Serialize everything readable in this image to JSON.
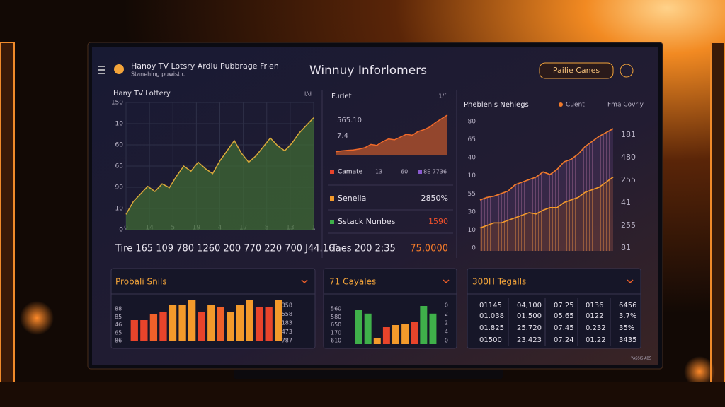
{
  "header": {
    "title": "Hanoy TV Lotsry Ardiu Pubbrage Frien",
    "subtitle": "Stanehing puwistic",
    "center_title": "Winnuy Inforlomers",
    "button": "Pailie Canes"
  },
  "panels": {
    "trend": {
      "title": "Hany TV Lottery",
      "corner": "l/d",
      "ylabels": [
        "150",
        "10",
        "60",
        "65",
        "90",
        "10",
        "0"
      ],
      "xlabels": [
        "0",
        "14",
        "5",
        "19",
        "4",
        "17",
        "8",
        "13",
        "1"
      ],
      "ylim": [
        0,
        100
      ],
      "line_color": "#d9a93a",
      "fill_color": "#3f6a34",
      "values": [
        12,
        22,
        28,
        34,
        30,
        36,
        33,
        42,
        50,
        46,
        53,
        48,
        44,
        54,
        62,
        70,
        60,
        53,
        58,
        65,
        72,
        66,
        62,
        68,
        76,
        82,
        88
      ],
      "footer": "Tire 165 109 780 1260 200 770 220 700 J44.16"
    },
    "furlet": {
      "title": "Furlet",
      "corner": "1/f",
      "labels": [
        "565.10",
        "7.4"
      ],
      "ylim": [
        0,
        100
      ],
      "color": "#f26a2a",
      "values": [
        8,
        10,
        11,
        12,
        14,
        17,
        24,
        22,
        30,
        36,
        34,
        40,
        46,
        44,
        52,
        56,
        62,
        72,
        80,
        88
      ],
      "legend": [
        {
          "name": "Camate",
          "color": "#e8442b",
          "texts": [
            "13",
            "60",
            "8E 7736"
          ],
          "color2": "#8a5ad0"
        },
        {
          "name": "Senelia",
          "color": "#f39a2b",
          "texts": [
            "2850%"
          ]
        },
        {
          "name": "Sstack Nunbes",
          "color": "#3fb04a",
          "texts": [
            "1590"
          ],
          "text_color": "#f0502a"
        }
      ],
      "footer": "Taes 200 2:35",
      "footer_value": "75,0000"
    },
    "problems": {
      "title": "Pheblenls Nehlegs",
      "ylabels": [
        "80",
        "65",
        "40",
        "10",
        "55",
        "30",
        "10",
        "0"
      ],
      "y2labels": [
        "181",
        "480",
        "255",
        "41",
        "255",
        "81"
      ],
      "ylim": [
        0,
        100
      ],
      "series": [
        {
          "name": "Cuent",
          "color": "#f07a2a",
          "fill": "#5b3f72",
          "values": [
            40,
            42,
            43,
            45,
            47,
            52,
            54,
            56,
            58,
            62,
            60,
            64,
            70,
            72,
            76,
            82,
            86,
            90,
            93,
            96
          ]
        },
        {
          "name": "Fma Covrly",
          "color": "#f39a2b",
          "fill": "#7a3f1c",
          "values": [
            18,
            20,
            22,
            22,
            24,
            26,
            28,
            30,
            29,
            32,
            34,
            34,
            38,
            40,
            42,
            46,
            48,
            50,
            54,
            58
          ]
        }
      ]
    },
    "probali": {
      "title": "Probali Snils",
      "ylabels": [
        "88",
        "85",
        "46",
        "65",
        "86"
      ],
      "y2labels": [
        "358",
        "558",
        "183",
        "473",
        "787"
      ],
      "ylim": [
        0,
        100
      ],
      "values": [
        30,
        30,
        38,
        42,
        52,
        52,
        58,
        42,
        52,
        48,
        42,
        52,
        58,
        48,
        48,
        58
      ],
      "colors": [
        "#e8442b",
        "#e8442b",
        "#f0602a",
        "#e8442b",
        "#f39a2b",
        "#f39a2b",
        "#f39a2b",
        "#e8442b",
        "#f39a2b",
        "#f0602a",
        "#f39a2b",
        "#f39a2b",
        "#f39a2b",
        "#e8442b",
        "#e8442b",
        "#f39a2b"
      ]
    },
    "cayales": {
      "title": "71 Cayales",
      "ylabels": [
        "560",
        "580",
        "650",
        "170",
        "610"
      ],
      "y2labels": [
        "0",
        "2",
        "2",
        "4",
        "0"
      ],
      "ylim": [
        0,
        100
      ],
      "values": [
        80,
        72,
        15,
        40,
        45,
        48,
        52,
        90,
        72
      ],
      "colors": [
        "#3fb04a",
        "#3fb04a",
        "#f39a2b",
        "#e8442b",
        "#f39a2b",
        "#f39a2b",
        "#e8442b",
        "#3fb04a",
        "#3fb04a"
      ]
    },
    "tegalls": {
      "title": "300H Tegalls",
      "rows": [
        [
          "01145",
          "04,100",
          "07.25",
          "0136",
          "6456"
        ],
        [
          "01.038",
          "01.500",
          "05.65",
          "0122",
          "3.7%"
        ],
        [
          "01.825",
          "25.720",
          "07.45",
          "0.232",
          "35%"
        ],
        [
          "01500",
          "23.423",
          "07.24",
          "01.22",
          "3435"
        ]
      ]
    }
  },
  "footer_note": "YASSIS AB5"
}
